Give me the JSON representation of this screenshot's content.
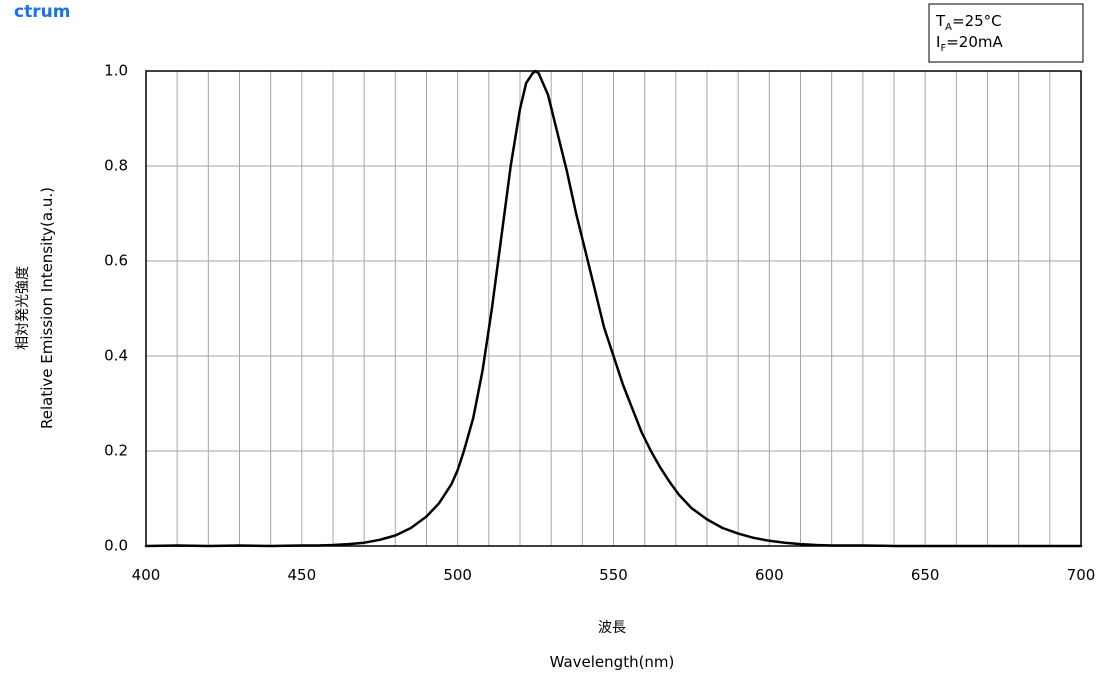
{
  "section_title": "ctrum",
  "conditions": {
    "line1": {
      "main": "T",
      "sub": "A",
      "rest": "=25°C"
    },
    "line2": {
      "main": "I",
      "sub": "F",
      "rest": "=20mA"
    }
  },
  "colors": {
    "title": "#1a73e8",
    "curve": "#000000",
    "grid": "#a6a6a6",
    "frame": "#000000"
  },
  "chart_data": {
    "type": "line",
    "xlabel_jp": "波長",
    "xlabel": "Wavelength(nm)",
    "ylabel_jp": "相対発光強度",
    "ylabel": "Relative Emission Intensity(a.u.)",
    "xlim": [
      400,
      700
    ],
    "ylim": [
      0,
      1.0
    ],
    "x_major_ticks": [
      400,
      450,
      500,
      550,
      600,
      650,
      700
    ],
    "x_tick_labels": [
      "400",
      "450",
      "500",
      "550",
      "600",
      "650",
      "700"
    ],
    "y_ticks": [
      0.0,
      0.2,
      0.4,
      0.6,
      0.8,
      1.0
    ],
    "y_tick_labels": [
      "0.0",
      "0.2",
      "0.4",
      "0.6",
      "0.8",
      "1.0"
    ],
    "x_minor_step": 10,
    "grid": true,
    "series": [
      {
        "x": [
          400,
          410,
          420,
          430,
          440,
          450,
          455,
          460,
          465,
          470,
          475,
          480,
          485,
          490,
          494,
          498,
          500,
          502,
          505,
          508,
          511,
          514,
          517,
          520,
          522,
          524,
          525,
          526,
          527,
          529,
          532,
          535,
          538,
          541,
          544,
          547,
          550,
          553,
          556,
          559,
          562,
          565,
          568,
          571,
          575,
          580,
          585,
          590,
          595,
          600,
          605,
          610,
          615,
          620,
          630,
          640,
          650,
          660,
          670,
          680,
          690,
          700
        ],
        "y": [
          0.0,
          0.001,
          0.0,
          0.001,
          0.0,
          0.001,
          0.001,
          0.002,
          0.004,
          0.007,
          0.013,
          0.022,
          0.038,
          0.062,
          0.09,
          0.13,
          0.16,
          0.2,
          0.27,
          0.37,
          0.5,
          0.65,
          0.8,
          0.92,
          0.975,
          0.995,
          1.0,
          0.995,
          0.98,
          0.95,
          0.87,
          0.79,
          0.7,
          0.62,
          0.54,
          0.46,
          0.4,
          0.34,
          0.29,
          0.24,
          0.2,
          0.165,
          0.135,
          0.108,
          0.08,
          0.056,
          0.038,
          0.026,
          0.017,
          0.011,
          0.007,
          0.004,
          0.002,
          0.001,
          0.001,
          0.0,
          0.0,
          0.0,
          0.0,
          0.0,
          0.0,
          0.0
        ]
      }
    ]
  }
}
